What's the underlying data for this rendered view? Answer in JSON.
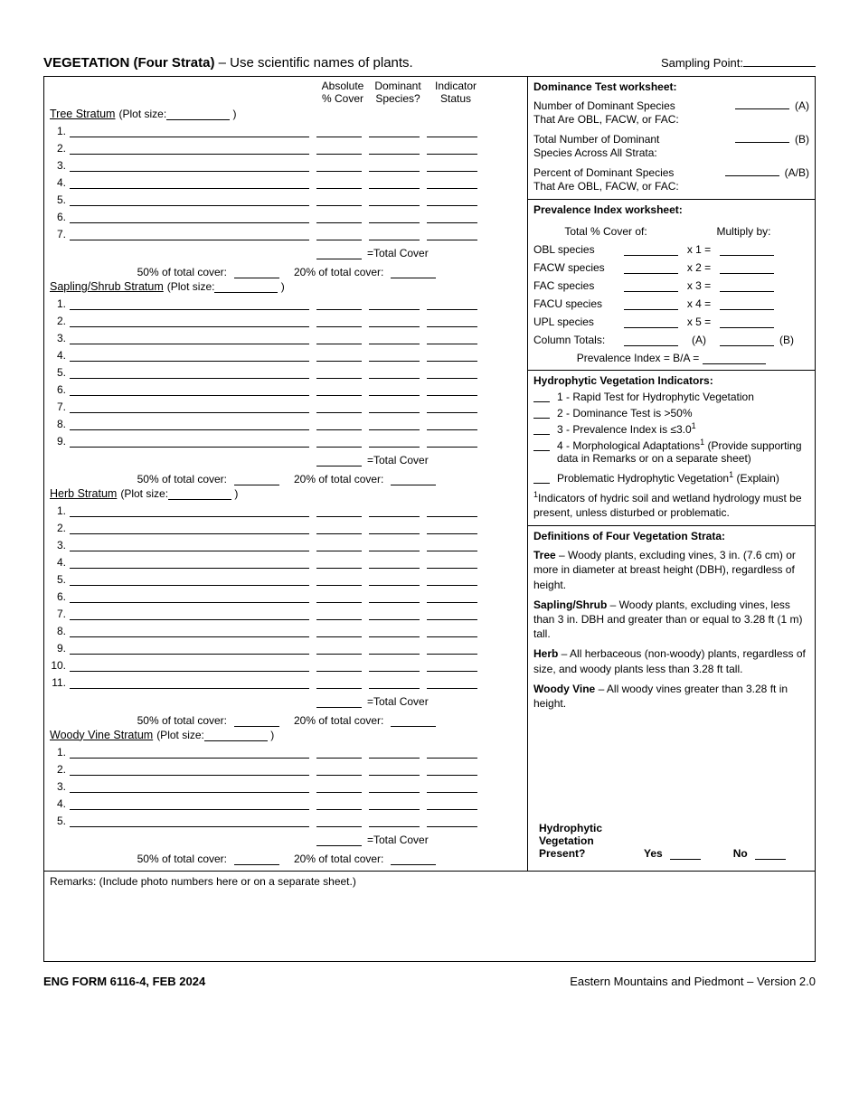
{
  "title": {
    "bold": "VEGETATION (Four Strata)",
    "rest": " – Use scientific names of plants."
  },
  "sampling_point_label": "Sampling Point:",
  "col_headers": {
    "abs1": "Absolute",
    "abs2": "% Cover",
    "dom1": "Dominant",
    "dom2": "Species?",
    "ind1": "Indicator",
    "ind2": "Status"
  },
  "strata": {
    "tree": {
      "title": "Tree Stratum",
      "plot_label": "(Plot size:",
      "rows": 7
    },
    "shrub": {
      "title": "Sapling/Shrub Stratum",
      "plot_label": "(Plot size:",
      "rows": 9
    },
    "herb": {
      "title": "Herb Stratum",
      "plot_label": "(Plot size:",
      "rows": 11
    },
    "vine": {
      "title": "Woody Vine Stratum",
      "plot_label": "(Plot size:",
      "rows": 5
    }
  },
  "total_cover_label": "=Total Cover",
  "pct50_label": "50% of total cover:",
  "pct20_label": "20% of total cover:",
  "dom_test": {
    "heading": "Dominance Test worksheet:",
    "a1": "Number of Dominant Species",
    "a2": "That Are OBL, FACW, or FAC:",
    "a_tag": "(A)",
    "b1": "Total Number of Dominant",
    "b2": "Species Across All Strata:",
    "b_tag": "(B)",
    "c1": "Percent of Dominant Species",
    "c2": "That Are OBL, FACW, or FAC:",
    "c_tag": "(A/B)"
  },
  "prev": {
    "heading": "Prevalence Index worksheet:",
    "col_left": "Total % Cover of:",
    "col_right": "Multiply by:",
    "obl": "OBL species",
    "obl_m": "x 1 =",
    "facw": "FACW species",
    "facw_m": "x 2 =",
    "fac": "FAC species",
    "fac_m": "x 3 =",
    "facu": "FACU species",
    "facu_m": "x 4 =",
    "upl": "UPL species",
    "upl_m": "x 5 =",
    "totals": "Column Totals:",
    "a_tag": "(A)",
    "b_tag": "(B)",
    "index": "Prevalence Index  = B/A ="
  },
  "hydro_ind": {
    "heading": "Hydrophytic Vegetation Indicators:",
    "i1": "1 - Rapid Test for Hydrophytic Vegetation",
    "i2": "2 - Dominance Test is >50%",
    "i3_a": "3 - Prevalence Index is ≤3.0",
    "i4_a": "4 - Morphological Adaptations",
    "i4_b": " (Provide supporting",
    "i4_c": "data in Remarks or on a separate sheet)",
    "i5_a": "Problematic Hydrophytic Vegetation",
    "i5_b": " (Explain)",
    "foot": "Indicators of hydric soil and wetland hydrology must be present, unless disturbed or problematic."
  },
  "defs": {
    "heading": "Definitions of Four Vegetation Strata:",
    "tree": "Tree",
    " tree_txt": " – Woody plants, excluding vines, 3 in. (7.6 cm) or more in diameter at breast height (DBH), regardless of height.",
    "shrub": "Sapling/Shrub",
    "shrub_txt": " – Woody plants, excluding vines, less than 3 in. DBH and greater than or equal to 3.28 ft (1 m) tall.",
    "herb": "Herb",
    "herb_txt": " – All herbaceous (non-woody) plants, regardless of size, and woody plants less than 3.28 ft tall.",
    "vine": "Woody Vine",
    "vine_txt": " – All woody vines greater than 3.28 ft in height."
  },
  "hv_present": {
    "l1": "Hydrophytic",
    "l2": "Vegetation",
    "l3": "Present?",
    "yes": "Yes",
    "no": "No"
  },
  "remarks_label": "Remarks: (Include photo numbers here or on a separate sheet.)",
  "footer": {
    "left": "ENG FORM 6116-4, FEB 2024",
    "right": "Eastern Mountains and Piedmont – Version 2.0"
  }
}
